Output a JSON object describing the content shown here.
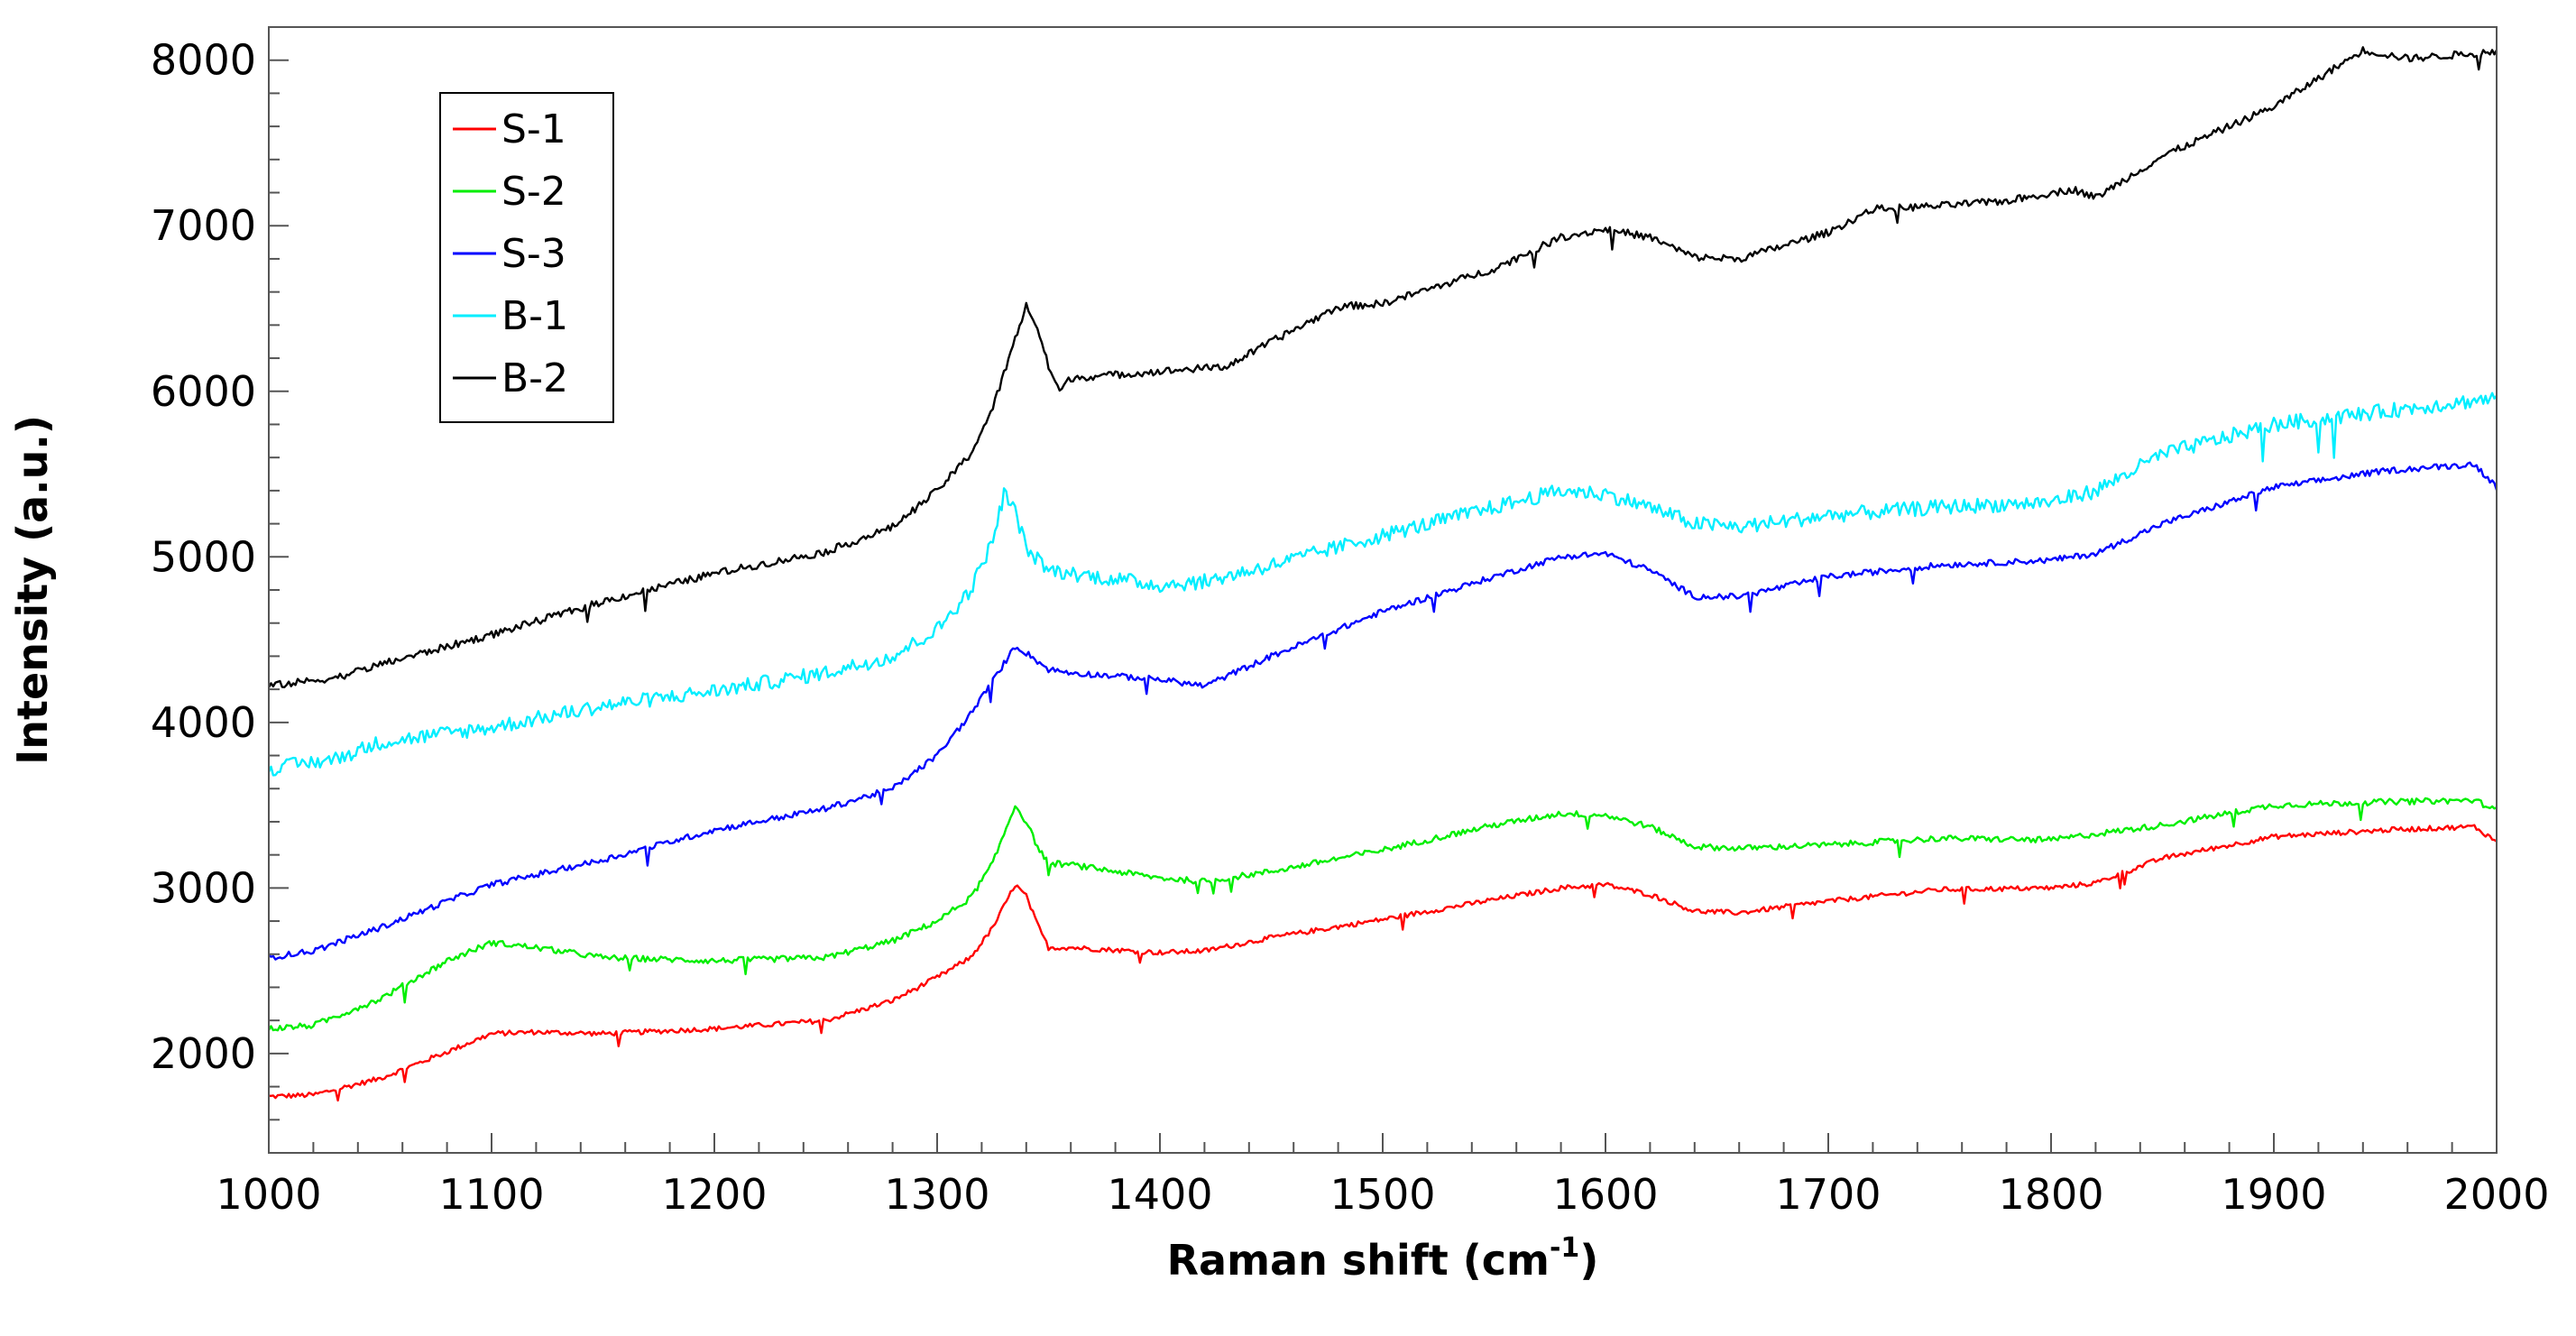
{
  "chart_data": {
    "type": "line",
    "title": "",
    "xlabel": "Raman shift (cm",
    "xlabel_sup": "-1",
    "xlabel_tail": ")",
    "ylabel": "Intensity (a.u.)",
    "xlim": [
      1000,
      2000
    ],
    "ylim": [
      1400,
      8200
    ],
    "xticks": [
      1000,
      1100,
      1200,
      1300,
      1400,
      1500,
      1600,
      1700,
      1800,
      1900,
      2000
    ],
    "yticks": [
      2000,
      3000,
      4000,
      5000,
      6000,
      7000,
      8000
    ],
    "legend_position": "top-left",
    "series": [
      {
        "name": "S-1",
        "color": "#ff0000",
        "noise": 15,
        "points": [
          [
            1000,
            1740
          ],
          [
            1020,
            1750
          ],
          [
            1050,
            1850
          ],
          [
            1080,
            2010
          ],
          [
            1100,
            2120
          ],
          [
            1120,
            2130
          ],
          [
            1150,
            2120
          ],
          [
            1200,
            2150
          ],
          [
            1250,
            2200
          ],
          [
            1280,
            2320
          ],
          [
            1300,
            2460
          ],
          [
            1315,
            2580
          ],
          [
            1325,
            2760
          ],
          [
            1335,
            3020
          ],
          [
            1340,
            2950
          ],
          [
            1345,
            2780
          ],
          [
            1350,
            2640
          ],
          [
            1360,
            2640
          ],
          [
            1400,
            2610
          ],
          [
            1420,
            2620
          ],
          [
            1450,
            2700
          ],
          [
            1500,
            2810
          ],
          [
            1550,
            2930
          ],
          [
            1580,
            3000
          ],
          [
            1600,
            3020
          ],
          [
            1620,
            2960
          ],
          [
            1640,
            2860
          ],
          [
            1660,
            2850
          ],
          [
            1700,
            2920
          ],
          [
            1750,
            2990
          ],
          [
            1800,
            3000
          ],
          [
            1820,
            3030
          ],
          [
            1850,
            3180
          ],
          [
            1900,
            3310
          ],
          [
            1950,
            3350
          ],
          [
            1990,
            3370
          ],
          [
            2000,
            3280
          ]
        ]
      },
      {
        "name": "S-2",
        "color": "#00ee00",
        "noise": 18,
        "points": [
          [
            1000,
            2150
          ],
          [
            1020,
            2170
          ],
          [
            1050,
            2330
          ],
          [
            1080,
            2560
          ],
          [
            1100,
            2670
          ],
          [
            1120,
            2640
          ],
          [
            1150,
            2580
          ],
          [
            1200,
            2560
          ],
          [
            1250,
            2580
          ],
          [
            1280,
            2680
          ],
          [
            1300,
            2800
          ],
          [
            1315,
            2940
          ],
          [
            1325,
            3150
          ],
          [
            1335,
            3500
          ],
          [
            1340,
            3400
          ],
          [
            1345,
            3250
          ],
          [
            1350,
            3150
          ],
          [
            1360,
            3140
          ],
          [
            1400,
            3060
          ],
          [
            1420,
            3040
          ],
          [
            1450,
            3100
          ],
          [
            1500,
            3230
          ],
          [
            1550,
            3380
          ],
          [
            1580,
            3450
          ],
          [
            1600,
            3440
          ],
          [
            1620,
            3370
          ],
          [
            1640,
            3250
          ],
          [
            1660,
            3240
          ],
          [
            1700,
            3260
          ],
          [
            1750,
            3300
          ],
          [
            1800,
            3290
          ],
          [
            1850,
            3380
          ],
          [
            1900,
            3500
          ],
          [
            1950,
            3520
          ],
          [
            1990,
            3530
          ],
          [
            2000,
            3470
          ]
        ]
      },
      {
        "name": "S-3",
        "color": "#0000ff",
        "noise": 18,
        "points": [
          [
            1000,
            2580
          ],
          [
            1020,
            2620
          ],
          [
            1050,
            2760
          ],
          [
            1080,
            2920
          ],
          [
            1100,
            3020
          ],
          [
            1150,
            3170
          ],
          [
            1200,
            3350
          ],
          [
            1250,
            3480
          ],
          [
            1280,
            3600
          ],
          [
            1300,
            3800
          ],
          [
            1315,
            4050
          ],
          [
            1325,
            4250
          ],
          [
            1335,
            4460
          ],
          [
            1340,
            4420
          ],
          [
            1350,
            4320
          ],
          [
            1360,
            4300
          ],
          [
            1400,
            4260
          ],
          [
            1420,
            4220
          ],
          [
            1450,
            4400
          ],
          [
            1500,
            4670
          ],
          [
            1550,
            4880
          ],
          [
            1580,
            5000
          ],
          [
            1600,
            5020
          ],
          [
            1620,
            4920
          ],
          [
            1640,
            4760
          ],
          [
            1660,
            4760
          ],
          [
            1700,
            4880
          ],
          [
            1750,
            4950
          ],
          [
            1800,
            4980
          ],
          [
            1820,
            5020
          ],
          [
            1850,
            5200
          ],
          [
            1900,
            5420
          ],
          [
            1950,
            5520
          ],
          [
            1990,
            5560
          ],
          [
            2000,
            5420
          ]
        ]
      },
      {
        "name": "B-1",
        "color": "#00eeff",
        "noise": 45,
        "points": [
          [
            1000,
            3720
          ],
          [
            1030,
            3780
          ],
          [
            1050,
            3880
          ],
          [
            1100,
            3970
          ],
          [
            1150,
            4100
          ],
          [
            1200,
            4190
          ],
          [
            1250,
            4300
          ],
          [
            1280,
            4400
          ],
          [
            1300,
            4560
          ],
          [
            1315,
            4800
          ],
          [
            1325,
            5100
          ],
          [
            1330,
            5380
          ],
          [
            1335,
            5280
          ],
          [
            1340,
            5050
          ],
          [
            1350,
            4920
          ],
          [
            1360,
            4900
          ],
          [
            1400,
            4830
          ],
          [
            1420,
            4850
          ],
          [
            1450,
            4950
          ],
          [
            1500,
            5130
          ],
          [
            1550,
            5300
          ],
          [
            1580,
            5400
          ],
          [
            1600,
            5380
          ],
          [
            1620,
            5300
          ],
          [
            1640,
            5200
          ],
          [
            1660,
            5180
          ],
          [
            1700,
            5250
          ],
          [
            1750,
            5300
          ],
          [
            1800,
            5330
          ],
          [
            1820,
            5400
          ],
          [
            1850,
            5620
          ],
          [
            1900,
            5800
          ],
          [
            1950,
            5880
          ],
          [
            2000,
            5960
          ]
        ]
      },
      {
        "name": "B-2",
        "color": "#000000",
        "noise": 22,
        "points": [
          [
            1000,
            4220
          ],
          [
            1030,
            4270
          ],
          [
            1050,
            4350
          ],
          [
            1100,
            4530
          ],
          [
            1150,
            4730
          ],
          [
            1200,
            4900
          ],
          [
            1250,
            5030
          ],
          [
            1280,
            5180
          ],
          [
            1300,
            5400
          ],
          [
            1315,
            5620
          ],
          [
            1325,
            5900
          ],
          [
            1340,
            6520
          ],
          [
            1345,
            6380
          ],
          [
            1350,
            6150
          ],
          [
            1355,
            6000
          ],
          [
            1360,
            6080
          ],
          [
            1400,
            6120
          ],
          [
            1430,
            6150
          ],
          [
            1450,
            6300
          ],
          [
            1480,
            6510
          ],
          [
            1500,
            6530
          ],
          [
            1550,
            6740
          ],
          [
            1580,
            6930
          ],
          [
            1600,
            6980
          ],
          [
            1620,
            6930
          ],
          [
            1640,
            6810
          ],
          [
            1660,
            6800
          ],
          [
            1700,
            6960
          ],
          [
            1720,
            7100
          ],
          [
            1750,
            7120
          ],
          [
            1780,
            7150
          ],
          [
            1810,
            7220
          ],
          [
            1820,
            7170
          ],
          [
            1850,
            7420
          ],
          [
            1900,
            7720
          ],
          [
            1940,
            8060
          ],
          [
            1960,
            8010
          ],
          [
            2000,
            8050
          ]
        ]
      }
    ]
  }
}
